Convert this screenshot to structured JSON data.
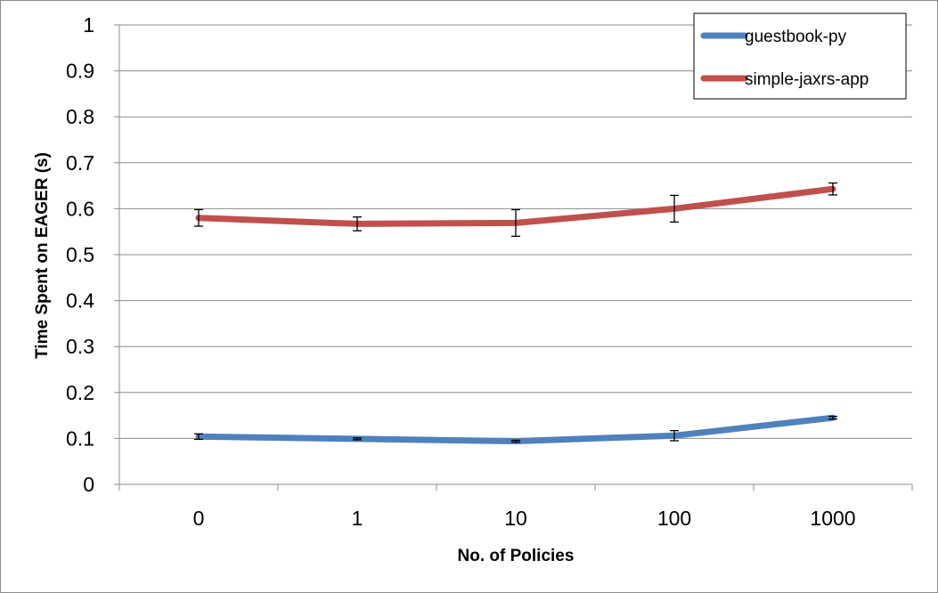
{
  "chart_data": {
    "type": "line",
    "title": "",
    "xlabel": "No. of Policies",
    "ylabel": "Time Spent on EAGER (s)",
    "categories": [
      "0",
      "1",
      "10",
      "100",
      "1000"
    ],
    "ylim": [
      0,
      1
    ],
    "yticks": [
      "0",
      "0.1",
      "0.2",
      "0.3",
      "0.4",
      "0.5",
      "0.6",
      "0.7",
      "0.8",
      "0.9",
      "1"
    ],
    "grid": true,
    "legend_position": "top-right",
    "series": [
      {
        "name": "guestbook-py",
        "color": "#4f81bd",
        "values": [
          0.104,
          0.099,
          0.094,
          0.106,
          0.145
        ],
        "error": [
          0.006,
          0.002,
          0.002,
          0.011,
          0.003
        ]
      },
      {
        "name": "simple-jaxrs-app",
        "color": "#c0504d",
        "values": [
          0.58,
          0.567,
          0.569,
          0.6,
          0.643
        ],
        "error": [
          0.018,
          0.015,
          0.029,
          0.029,
          0.013
        ]
      }
    ]
  }
}
